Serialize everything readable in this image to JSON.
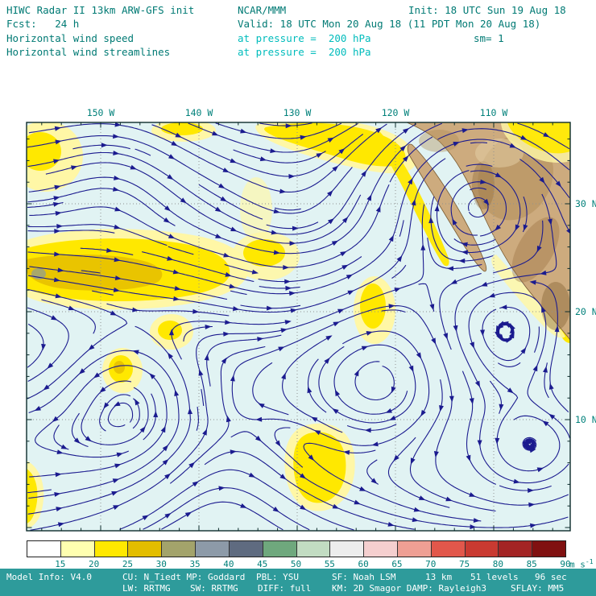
{
  "header": {
    "title": "HIWC Radar II 13km ARW-GFS init",
    "org": "NCAR/MMM",
    "init": "Init: 18 UTC Sun 19 Aug 18",
    "fcst": "Fcst:   24 h",
    "valid": "Valid: 18 UTC Mon 20 Aug 18 (11 PDT Mon 20 Aug 18)",
    "field1_label": "Horizontal wind speed",
    "field1_level": "at pressure =  200 hPa",
    "sm": "sm= 1",
    "field2_label": "Horizontal wind streamlines",
    "field2_level": "at pressure =  200 hPa"
  },
  "map": {
    "lon_labels": [
      "150 W",
      "140 W",
      "130 W",
      "120 W",
      "110 W"
    ],
    "lat_labels": [
      "30 N",
      "20 N",
      "10 N"
    ],
    "ocean_color": "#e1f3f3",
    "terrain_color": "#cdab7e",
    "streamline_color": "#1b1b8f",
    "shading_light": "#fff7a6",
    "shading_mid": "#ffe800",
    "shading_core": "#e9c400"
  },
  "colorbar": {
    "labels": [
      "15",
      "20",
      "25",
      "30",
      "35",
      "40",
      "45",
      "50",
      "55",
      "60",
      "65",
      "70",
      "75",
      "80",
      "85",
      "90"
    ],
    "colors": [
      "#ffffff",
      "#ffffb0",
      "#ffe800",
      "#e3bd00",
      "#a3a36b",
      "#8d9aa8",
      "#5f6b80",
      "#6fa87d",
      "#c2dcc2",
      "#ededed",
      "#f5cfcf",
      "#ef9f94",
      "#e2574b",
      "#c93a31",
      "#a32424",
      "#801111"
    ],
    "units": "m s",
    "units_exp": "-1"
  },
  "footer": {
    "model_info": "Model Info: V4.0",
    "cu_mp": "CU: N_Tiedt MP: Goddard",
    "pbl": "PBL: YSU",
    "sf": "SF: Noah LSM",
    "res": "13 km",
    "levels": "51 levels",
    "timestep": "96 sec",
    "lw": "LW: RRTMG",
    "sw": "SW: RRTMG",
    "diff": "DIFF: full",
    "km_damp": "KM: 2D Smagor DAMP: Rayleigh3",
    "sflay": "SFLAY: MM5"
  },
  "chart_data": {
    "type": "heatmap",
    "subtype": "filled wind-speed shading with streamlines over map",
    "title": "Horizontal wind speed and horizontal wind streamlines at pressure = 200 hPa",
    "model": "HIWC Radar II 13km ARW-GFS init",
    "org": "NCAR/MMM",
    "init_time": "18 UTC Sun 19 Aug 18",
    "forecast_hours": 24,
    "valid_time": "18 UTC Mon 20 Aug 18 (11 PDT Mon 20 Aug 18)",
    "sm": 1,
    "units": "m s-1",
    "colorbar_levels": [
      15,
      20,
      25,
      30,
      35,
      40,
      45,
      50,
      55,
      60,
      65,
      70,
      75,
      80,
      85,
      90
    ],
    "colorbar_colors": [
      "#ffffff",
      "#ffffb0",
      "#ffe800",
      "#e3bd00",
      "#a3a36b",
      "#8d9aa8",
      "#5f6b80",
      "#6fa87d",
      "#c2dcc2",
      "#ededed",
      "#f5cfcf",
      "#ef9f94",
      "#e2574b",
      "#c93a31",
      "#a32424",
      "#801111"
    ],
    "x_ticks": [
      "150 W",
      "140 W",
      "130 W",
      "120 W",
      "110 W"
    ],
    "y_ticks": [
      "30 N",
      "20 N",
      "10 N"
    ],
    "shaded_speed_range_visible_m_s": [
      15,
      30
    ],
    "legend_position": "bottom",
    "grid": "dotted lat/lon graticule every 10 degrees"
  }
}
